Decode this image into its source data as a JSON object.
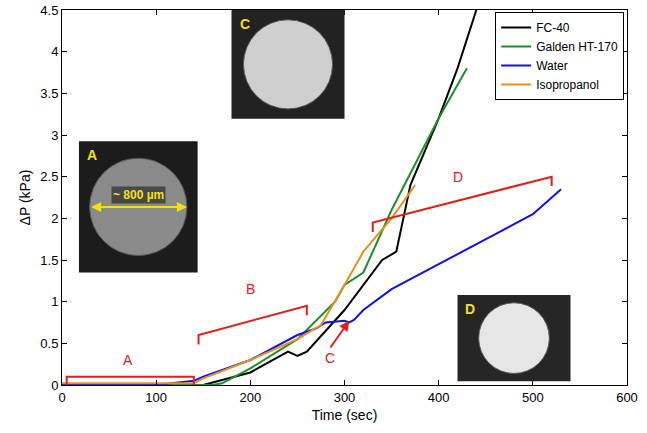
{
  "chart_data": {
    "type": "line",
    "xlabel": "Time (sec)",
    "ylabel": "ΔP (kPa)",
    "xlim": [
      0,
      600
    ],
    "ylim": [
      0,
      4.5
    ],
    "xticks": [
      0,
      100,
      200,
      300,
      400,
      500,
      600
    ],
    "yticks": [
      0,
      0.5,
      1,
      1.5,
      2,
      2.5,
      3,
      3.5,
      4,
      4.5
    ],
    "grid": false,
    "legend": "upper right",
    "series": [
      {
        "name": "FC-40",
        "color": "#000000",
        "x": [
          0,
          100,
          150,
          200,
          240,
          250,
          260,
          300,
          340,
          355,
          370,
          400,
          420,
          440
        ],
        "values": [
          0,
          0,
          0,
          0.15,
          0.4,
          0.35,
          0.4,
          0.9,
          1.5,
          1.6,
          2.4,
          3.2,
          3.8,
          4.5
        ]
      },
      {
        "name": "Galden HT-170",
        "color": "#1f8f2a",
        "x": [
          0,
          160,
          170,
          200,
          250,
          290,
          300,
          320,
          350,
          400,
          430
        ],
        "values": [
          0,
          0,
          0.02,
          0.2,
          0.55,
          1.0,
          1.2,
          1.35,
          2.1,
          3.2,
          3.8
        ]
      },
      {
        "name": "Water",
        "color": "#1010ee",
        "x": [
          0,
          100,
          140,
          150,
          200,
          250,
          270,
          280,
          300,
          305,
          310,
          320,
          350,
          400,
          450,
          500,
          530
        ],
        "values": [
          0,
          0,
          0.05,
          0.1,
          0.3,
          0.6,
          0.68,
          0.75,
          0.77,
          0.75,
          0.78,
          0.9,
          1.15,
          1.45,
          1.75,
          2.05,
          2.35
        ]
      },
      {
        "name": "Isopropanol",
        "color": "#e8901c",
        "x": [
          0,
          140,
          150,
          200,
          250,
          275,
          300,
          320,
          350,
          375
        ],
        "values": [
          0.02,
          0.02,
          0.08,
          0.3,
          0.55,
          0.72,
          1.2,
          1.6,
          2.0,
          2.4
        ]
      }
    ],
    "annotations": [
      {
        "text": "A",
        "x": 70,
        "y": 0.3,
        "bracket": [
          [
            5,
            0.1
          ],
          [
            140,
            0.1
          ]
        ]
      },
      {
        "text": "B",
        "x": 200,
        "y": 1.15,
        "bracket": [
          [
            145,
            0.6
          ],
          [
            260,
            0.95
          ]
        ]
      },
      {
        "text": "C",
        "x": 285,
        "y": 0.45,
        "arrow_to": [
          305,
          0.77
        ]
      },
      {
        "text": "D",
        "x": 420,
        "y": 2.5,
        "bracket": [
          [
            330,
            1.95
          ],
          [
            520,
            2.5
          ]
        ]
      }
    ],
    "insets": [
      {
        "label": "A",
        "scale_text": "~ 800 µm"
      },
      {
        "label": "C"
      },
      {
        "label": "D"
      }
    ]
  }
}
